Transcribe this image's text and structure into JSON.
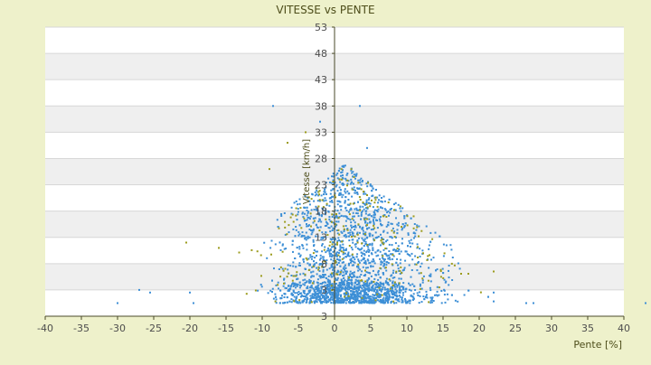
{
  "chart_data": {
    "type": "scatter",
    "title": "VITESSE vs PENTE",
    "xlabel": "Pente [%]",
    "ylabel": "Vitesse [km/h]",
    "xlim": [
      -40,
      40
    ],
    "ylim": [
      -2,
      53
    ],
    "x_ticks": [
      "-40",
      "-35",
      "-30",
      "-25",
      "-20",
      "-15",
      "-10",
      "-5",
      "0",
      "5",
      "10",
      "15",
      "20",
      "25",
      "30",
      "35",
      "40"
    ],
    "y_ticks": [
      "53",
      "48",
      "43",
      "38",
      "33",
      "28",
      "23",
      "18",
      "13",
      "8",
      "3",
      "3"
    ],
    "grid": true,
    "bands": "alternating gray/white horizontal bands",
    "series": [
      {
        "color": "#3d8fd6",
        "cluster": {
          "x_range": [
            -20,
            22
          ],
          "y_range": [
            0.5,
            27
          ],
          "peak_x": 1.5
        },
        "outliers": [
          [
            -30,
            0.5
          ],
          [
            -27,
            3
          ],
          [
            -25.5,
            2.5
          ],
          [
            -20,
            2.5
          ],
          [
            -19.5,
            0.5
          ],
          [
            -8.5,
            38
          ],
          [
            -2,
            35
          ],
          [
            3.5,
            38
          ],
          [
            4.5,
            30
          ],
          [
            22,
            2.5
          ],
          [
            26.5,
            0.5
          ],
          [
            27.5,
            0.5
          ],
          [
            43,
            0.5
          ]
        ]
      },
      {
        "color": "#9c9c1e",
        "cluster": {
          "x_range": [
            -20,
            22
          ],
          "y_range": [
            0.5,
            27
          ],
          "peak_x": 1.5
        },
        "outliers": [
          [
            -20.5,
            12
          ],
          [
            -16,
            11
          ],
          [
            -9,
            26
          ],
          [
            -6.5,
            31
          ],
          [
            -4,
            33
          ],
          [
            1,
            24
          ],
          [
            22,
            6.5
          ]
        ]
      }
    ]
  }
}
